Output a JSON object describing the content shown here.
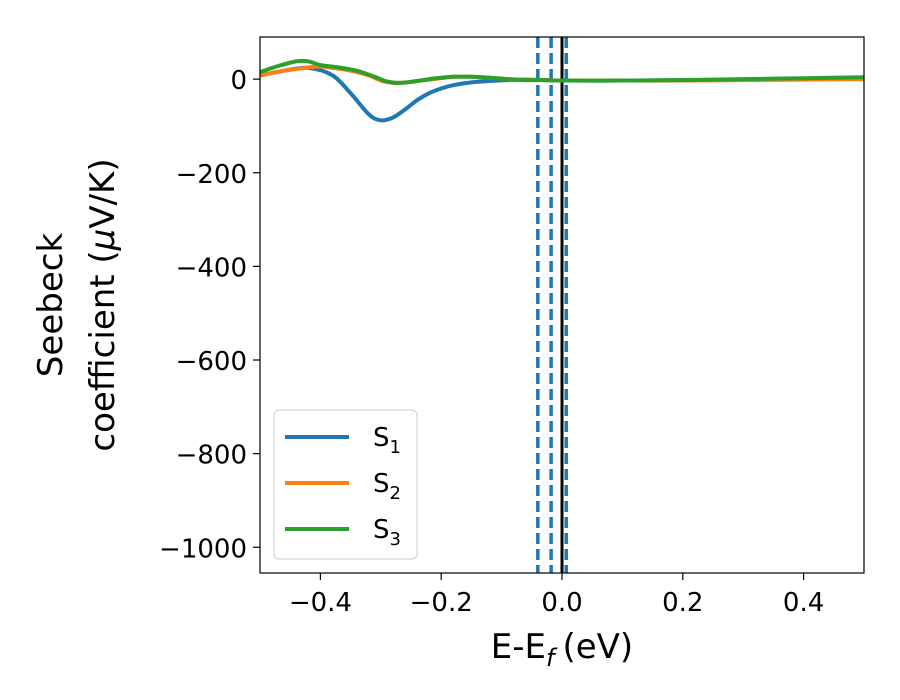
{
  "chart_data": {
    "type": "line",
    "xlabel": "E-E",
    "xlabel_sub": "f",
    "xlabel_unit": "(eV)",
    "ylabel_line1": "Seebeck",
    "ylabel_line2": "coefficient  (",
    "ylabel_mu": "μ",
    "ylabel_unit": "V/K)",
    "xlim": [
      -0.5,
      0.5
    ],
    "ylim": [
      -1055,
      90
    ],
    "xticks": [
      -0.4,
      -0.2,
      0.0,
      0.2,
      0.4
    ],
    "xtick_labels": [
      "−0.4",
      "−0.2",
      "0.0",
      "0.2",
      "0.4"
    ],
    "yticks": [
      0,
      -200,
      -400,
      -600,
      -800,
      -1000
    ],
    "ytick_labels": [
      "0",
      "−200",
      "−400",
      "−600",
      "−800",
      "−1000"
    ],
    "legend_position": "lower-left",
    "grid": false,
    "series": [
      {
        "name": "S",
        "subscript": "1",
        "color": "#1f77b4",
        "x": [
          -0.5,
          -0.46,
          -0.42,
          -0.38,
          -0.35,
          -0.32,
          -0.3,
          -0.28,
          -0.26,
          -0.24,
          -0.22,
          -0.2,
          -0.18,
          -0.15,
          -0.12,
          -0.09,
          -0.06,
          -0.03,
          0.0,
          0.1,
          0.2,
          0.3,
          0.4,
          0.5
        ],
        "y": [
          8,
          18,
          24,
          8,
          -30,
          -75,
          -88,
          -82,
          -65,
          -45,
          -30,
          -20,
          -13,
          -7,
          -4,
          -2,
          -1,
          -2,
          -3,
          -3,
          -2,
          -1,
          0,
          2
        ]
      },
      {
        "name": "S",
        "subscript": "2",
        "color": "#ff7f0e",
        "x": [
          -0.5,
          -0.46,
          -0.42,
          -0.4,
          -0.38,
          -0.35,
          -0.32,
          -0.3,
          -0.28,
          -0.26,
          -0.24,
          -0.2,
          -0.18,
          -0.15,
          -0.12,
          -0.09,
          -0.06,
          -0.03,
          0.0,
          0.1,
          0.2,
          0.3,
          0.4,
          0.5
        ],
        "y": [
          8,
          18,
          25,
          27,
          24,
          18,
          8,
          -3,
          -8,
          -7,
          -4,
          2,
          5,
          5,
          3,
          0,
          -2,
          -2,
          -3,
          -3,
          -3,
          -2,
          -1,
          0
        ]
      },
      {
        "name": "S",
        "subscript": "3",
        "color": "#2ca02c",
        "x": [
          -0.5,
          -0.47,
          -0.44,
          -0.42,
          -0.4,
          -0.37,
          -0.34,
          -0.31,
          -0.29,
          -0.27,
          -0.25,
          -0.22,
          -0.2,
          -0.18,
          -0.15,
          -0.12,
          -0.09,
          -0.06,
          -0.03,
          0.0,
          0.1,
          0.2,
          0.3,
          0.4,
          0.5
        ],
        "y": [
          15,
          28,
          38,
          38,
          30,
          25,
          18,
          5,
          -5,
          -8,
          -6,
          0,
          3,
          5,
          5,
          3,
          0,
          -2,
          -2,
          -3,
          -3,
          -2,
          0,
          2,
          4
        ]
      }
    ],
    "vertical_lines": [
      {
        "x": -0.04,
        "color": "#1f77b4",
        "style": "dashed"
      },
      {
        "x": -0.018,
        "color": "#1f77b4",
        "style": "dashed"
      },
      {
        "x": 0.007,
        "color": "#1f77b4",
        "style": "dashed"
      },
      {
        "x": 0.0,
        "color": "#000000",
        "style": "solid"
      }
    ]
  }
}
